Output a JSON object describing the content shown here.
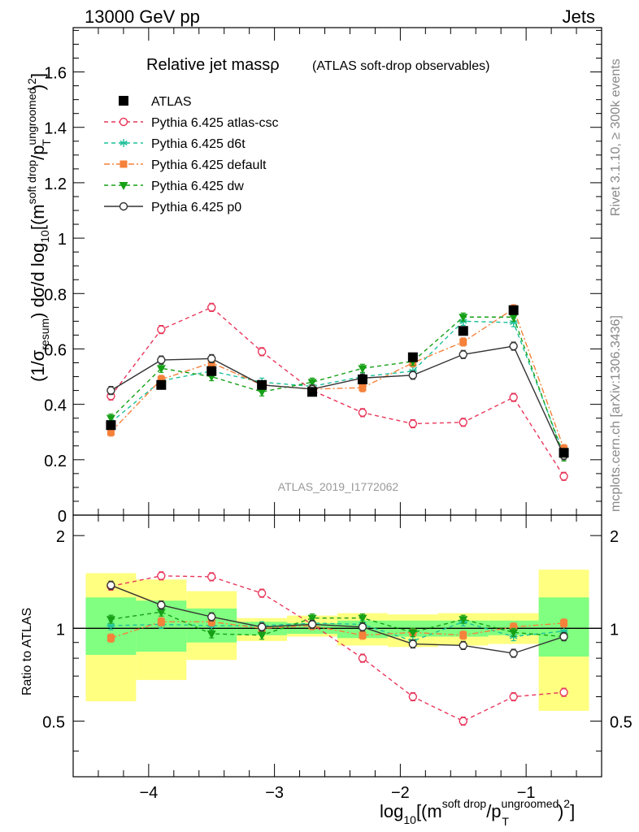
{
  "header": {
    "left": "13000 GeV pp",
    "right": "Jets",
    "side_top": "Rivet 3.1.10, ≥ 300k events",
    "side_bottom": "mcplots.cern.ch [arXiv:1306.3436]",
    "watermark": "ATLAS_2019_I1772062"
  },
  "chart_data": {
    "type": "line",
    "title": "Relative jet massρ",
    "subtitle": "(ATLAS soft-drop observables)",
    "xlabel": "log10[(m^soft drop/pT^ungroomed)^2]",
    "ylabel": "(1/σresum) dσ/d log10[(m^soft drop/pT^ungroomed)^2]",
    "ratio_ylabel": "Ratio to ATLAS",
    "xlim": [
      -4.6,
      -0.4
    ],
    "ylim": [
      0,
      1.76
    ],
    "ratio_ylim": [
      0.33,
      2.33
    ],
    "xticks": [
      -4,
      -3,
      -2,
      -1
    ],
    "xtick_labels": [
      "−4",
      "−3",
      "−2",
      "−1"
    ],
    "yticks": [
      0,
      0.2,
      0.4,
      0.6,
      0.8,
      1,
      1.2,
      1.4,
      1.6
    ],
    "ytick_labels": [
      "0",
      "0.2",
      "0.4",
      "0.6",
      "0.8",
      "1",
      "1.2",
      "1.4",
      "1.6"
    ],
    "ratio_yticks": [
      0.5,
      1,
      2
    ],
    "ratio_ytick_labels": [
      "0.5",
      "1",
      "2"
    ],
    "x": [
      -4.3,
      -3.9,
      -3.5,
      -3.1,
      -2.7,
      -2.3,
      -1.9,
      -1.5,
      -1.1,
      -0.7
    ],
    "bin_edges": [
      -4.5,
      -4.1,
      -3.7,
      -3.3,
      -2.9,
      -2.5,
      -2.1,
      -1.7,
      -1.3,
      -0.9,
      -0.5
    ],
    "data": {
      "name": "ATLAS",
      "values": [
        0.325,
        0.47,
        0.52,
        0.47,
        0.445,
        0.49,
        0.57,
        0.665,
        0.74,
        0.225
      ],
      "band_stat_lo": [
        0.82,
        0.84,
        0.9,
        0.95,
        0.96,
        0.93,
        0.94,
        0.94,
        0.95,
        0.81
      ],
      "band_stat_hi": [
        1.26,
        1.23,
        1.16,
        1.05,
        1.04,
        1.06,
        1.06,
        1.06,
        1.06,
        1.26
      ],
      "band_tot_lo": [
        0.58,
        0.68,
        0.79,
        0.91,
        0.94,
        0.88,
        0.87,
        0.88,
        0.89,
        0.54
      ],
      "band_tot_hi": [
        1.51,
        1.44,
        1.32,
        1.08,
        1.1,
        1.12,
        1.11,
        1.12,
        1.12,
        1.55
      ]
    },
    "series": [
      {
        "name": "Pythia 6.425 atlas-csc",
        "color": "#e8365a",
        "marker": "open-circle",
        "dash": "5,4",
        "values": [
          0.43,
          0.67,
          0.75,
          0.59,
          0.45,
          0.37,
          0.33,
          0.335,
          0.425,
          0.14
        ],
        "ratio": [
          1.37,
          1.48,
          1.47,
          1.3,
          1.03,
          0.8,
          0.6,
          0.5,
          0.6,
          0.62
        ]
      },
      {
        "name": "Pythia 6.425 d6t",
        "color": "#1ec09a",
        "marker": "asterisk",
        "dash": "5,4",
        "values": [
          0.335,
          0.485,
          0.52,
          0.48,
          0.465,
          0.5,
          0.52,
          0.7,
          0.695,
          0.22
        ],
        "ratio": [
          1.02,
          1.03,
          1.02,
          1.02,
          1.04,
          1.03,
          0.91,
          1.05,
          0.94,
          0.98
        ]
      },
      {
        "name": "Pythia 6.425 default",
        "color": "#f5813a",
        "marker": "square",
        "dash": "7,3,2,3",
        "values": [
          0.3,
          0.49,
          0.55,
          0.47,
          0.455,
          0.46,
          0.55,
          0.625,
          0.745,
          0.24
        ],
        "ratio": [
          0.93,
          1.05,
          1.05,
          1.0,
          1.02,
          0.95,
          0.97,
          0.95,
          1.01,
          1.04
        ]
      },
      {
        "name": "Pythia 6.425 dw",
        "color": "#16a016",
        "marker": "triangle-down",
        "dash": "5,4",
        "values": [
          0.35,
          0.53,
          0.5,
          0.445,
          0.48,
          0.53,
          0.555,
          0.715,
          0.715,
          0.21
        ],
        "ratio": [
          1.07,
          1.13,
          0.96,
          0.95,
          1.08,
          1.08,
          0.97,
          1.07,
          0.97,
          0.94
        ]
      },
      {
        "name": "Pythia 6.425 p0",
        "color": "#333333",
        "marker": "open-circle",
        "dash": "",
        "values": [
          0.45,
          0.56,
          0.565,
          0.47,
          0.455,
          0.495,
          0.505,
          0.58,
          0.61,
          0.215
        ],
        "ratio": [
          1.38,
          1.19,
          1.09,
          1.01,
          1.03,
          1.01,
          0.89,
          0.88,
          0.83,
          0.94
        ]
      }
    ],
    "legend_position": "top-left",
    "colors": {
      "band_stat": "#80ff80",
      "band_total": "#ffff80"
    }
  }
}
